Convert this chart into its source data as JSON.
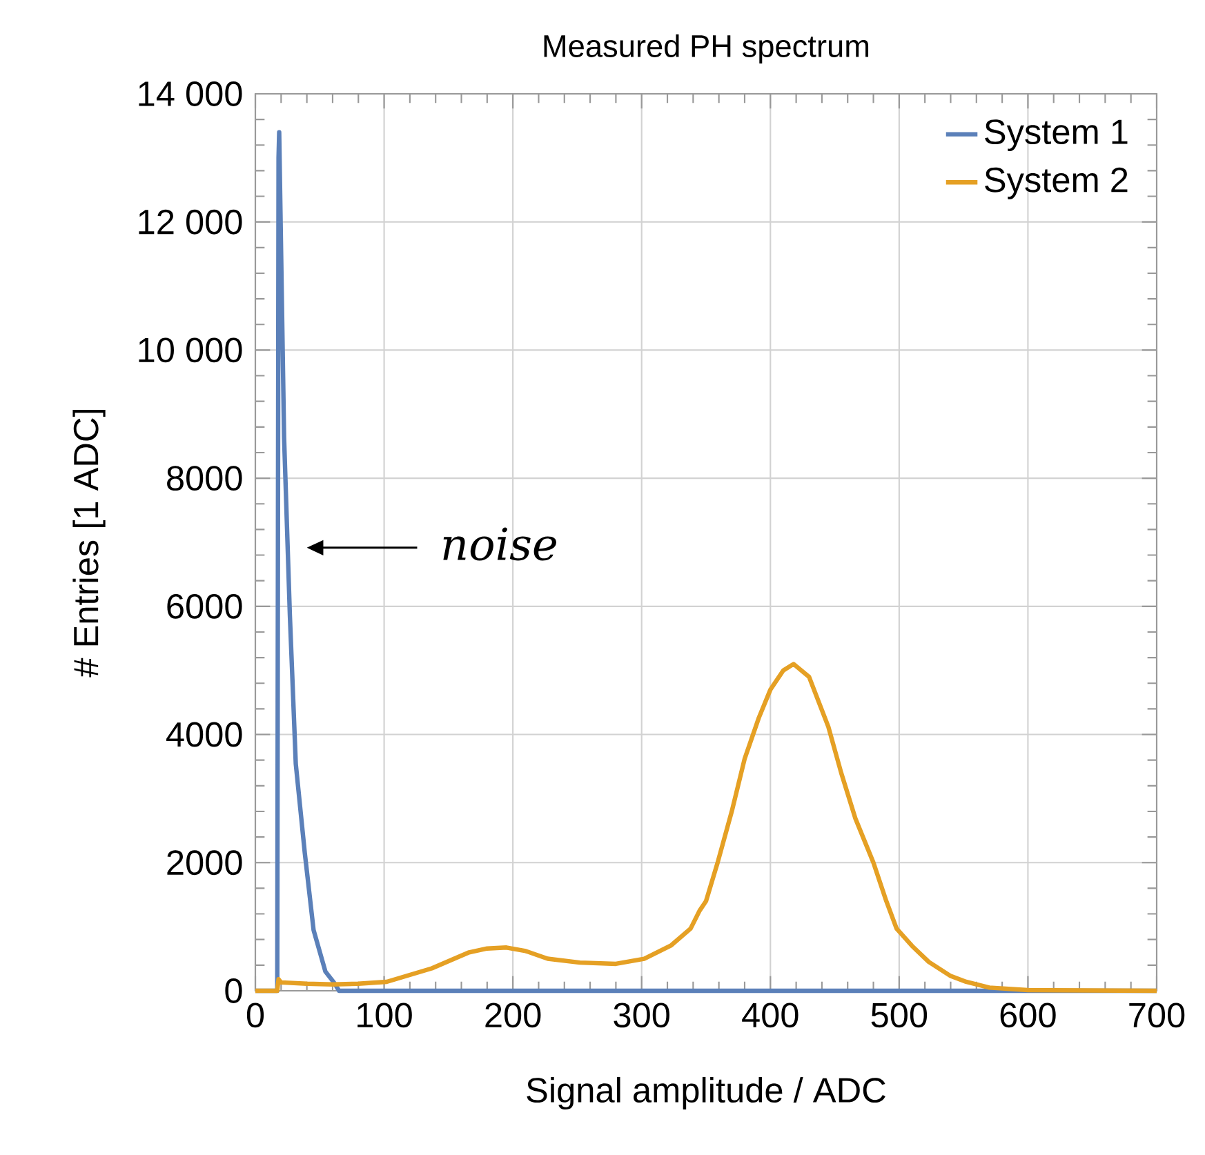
{
  "chart_data": {
    "type": "line",
    "title": "Measured PH spectrum",
    "xlabel": "Signal amplitude / ADC",
    "ylabel": "# Entries [1 ADC]",
    "xlim": [
      0,
      700
    ],
    "ylim": [
      0,
      14000
    ],
    "xticks": [
      0,
      100,
      200,
      300,
      400,
      500,
      600,
      700
    ],
    "yticks": [
      0,
      2000,
      4000,
      6000,
      8000,
      {
        "value": 10000,
        "label": "10 000"
      },
      {
        "value": 12000,
        "label": "12 000"
      },
      {
        "value": 14000,
        "label": "14 000"
      }
    ],
    "grid": true,
    "legend": "top right",
    "marker": "none",
    "line_style": "solid",
    "annotations": [
      "noise"
    ],
    "series": [
      {
        "name": "System 1",
        "color": "#5b80b9",
        "x": [
          0,
          17,
          18,
          18.5,
          22.3,
          26.8,
          31.4,
          38.4,
          45.2,
          54.4,
          61,
          65,
          700
        ],
        "values": [
          0,
          0,
          13000,
          13400,
          8640,
          5860,
          3540,
          2150,
          950,
          300,
          130,
          0,
          0
        ]
      },
      {
        "name": "System 2",
        "color": "#e5a024",
        "x": [
          0,
          17,
          18,
          20,
          40,
          60,
          80,
          102,
          137,
          166,
          180,
          195,
          210,
          227,
          252,
          280,
          302,
          323,
          338,
          345,
          350,
          359,
          370,
          380,
          391,
          400,
          410,
          418,
          430,
          445,
          455,
          466,
          480,
          490,
          498,
          510,
          523,
          540,
          552,
          570,
          600,
          700
        ],
        "values": [
          0,
          0,
          180,
          130,
          110,
          100,
          110,
          140,
          350,
          600,
          660,
          675,
          620,
          500,
          440,
          420,
          500,
          710,
          970,
          1250,
          1400,
          2000,
          2800,
          3620,
          4260,
          4700,
          5000,
          5100,
          4900,
          4120,
          3400,
          2690,
          2000,
          1400,
          970,
          700,
          450,
          230,
          140,
          50,
          10,
          0
        ]
      }
    ]
  }
}
